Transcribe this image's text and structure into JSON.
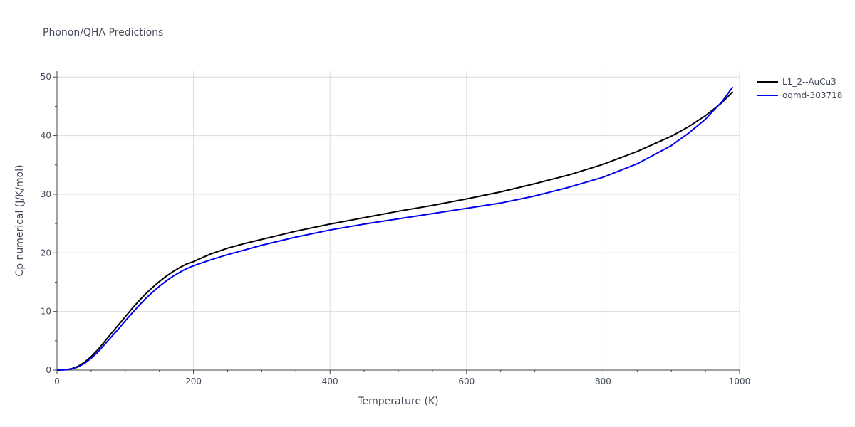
{
  "chart_data": {
    "type": "line",
    "title": "Phonon/QHA Predictions",
    "xlabel": "Temperature (K)",
    "ylabel": "Cp numerical (J/K/mol)",
    "xlim": [
      0,
      1000
    ],
    "ylim": [
      0,
      51
    ],
    "xticks": [
      0,
      200,
      400,
      600,
      800,
      1000
    ],
    "yticks": [
      0,
      10,
      20,
      30,
      40,
      50
    ],
    "grid": true,
    "legend": "top-right",
    "series": [
      {
        "name": "L1_2--AuCu3",
        "color": "#000000",
        "x": [
          0,
          10,
          20,
          30,
          40,
          50,
          60,
          70,
          80,
          90,
          100,
          110,
          120,
          130,
          140,
          150,
          160,
          170,
          180,
          190,
          200,
          225,
          250,
          275,
          300,
          350,
          400,
          450,
          500,
          550,
          600,
          650,
          700,
          750,
          800,
          850,
          900,
          925,
          950,
          975,
          990
        ],
        "y": [
          0,
          0.05,
          0.2,
          0.6,
          1.3,
          2.3,
          3.5,
          4.9,
          6.3,
          7.7,
          9.1,
          10.5,
          11.8,
          13.0,
          14.1,
          15.1,
          16.0,
          16.8,
          17.5,
          18.1,
          18.5,
          19.8,
          20.8,
          21.6,
          22.3,
          23.7,
          24.9,
          26.0,
          27.1,
          28.1,
          29.2,
          30.4,
          31.8,
          33.3,
          35.1,
          37.3,
          39.9,
          41.5,
          43.4,
          45.7,
          47.5
        ]
      },
      {
        "name": "oqmd-303718",
        "color": "#0000ee",
        "x": [
          0,
          10,
          20,
          30,
          40,
          50,
          60,
          70,
          80,
          90,
          100,
          110,
          120,
          130,
          140,
          150,
          160,
          170,
          180,
          190,
          200,
          225,
          250,
          275,
          300,
          350,
          400,
          450,
          500,
          550,
          600,
          650,
          700,
          750,
          800,
          850,
          900,
          925,
          950,
          975,
          990
        ],
        "y": [
          0,
          0.04,
          0.15,
          0.5,
          1.1,
          2.0,
          3.1,
          4.4,
          5.7,
          7.0,
          8.4,
          9.7,
          11.0,
          12.2,
          13.3,
          14.3,
          15.2,
          16.0,
          16.7,
          17.3,
          17.8,
          18.8,
          19.7,
          20.5,
          21.3,
          22.7,
          23.9,
          24.9,
          25.8,
          26.7,
          27.6,
          28.5,
          29.7,
          31.2,
          32.9,
          35.2,
          38.3,
          40.4,
          42.8,
          45.9,
          48.3
        ]
      }
    ]
  }
}
